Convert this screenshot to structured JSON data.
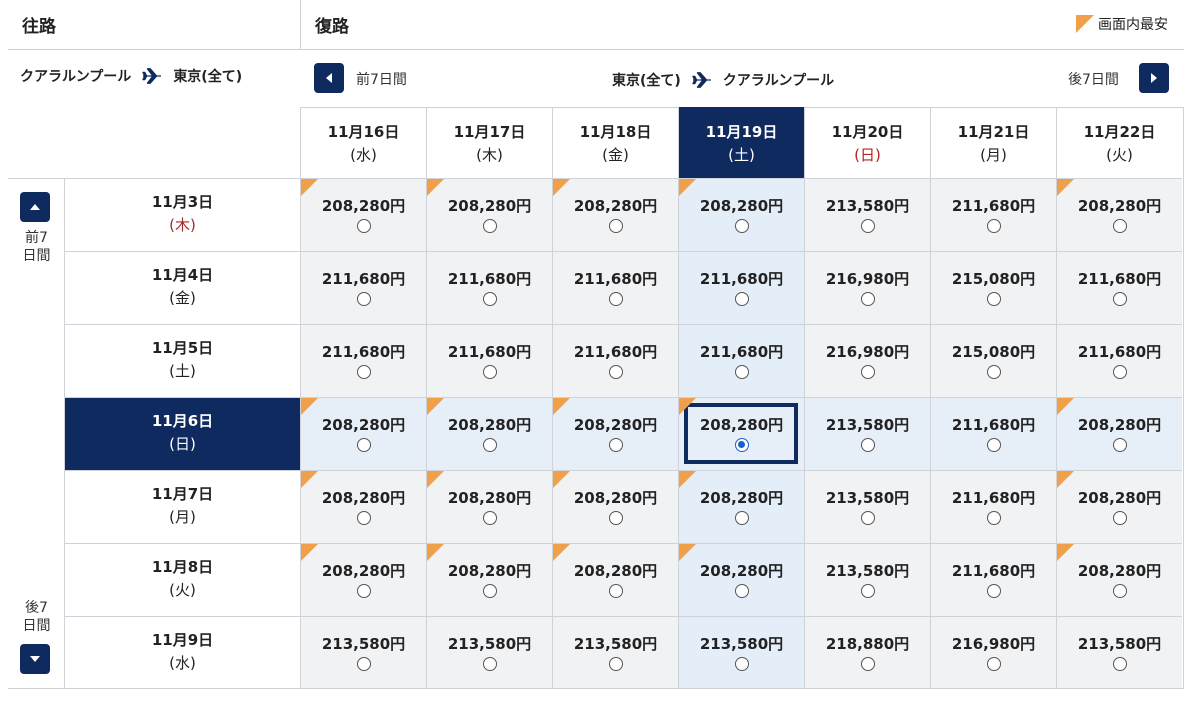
{
  "header": {
    "outbound_title": "往路",
    "return_title": "復路",
    "legend_label": "画面内最安",
    "legend_color": "#f0a04b"
  },
  "outbound_route": {
    "from": "クアラルンプール",
    "to": "東京(全て)"
  },
  "return_route": {
    "from": "東京(全て)",
    "to": "クアラルンプール"
  },
  "return_nav": {
    "prev_label": "前7日間",
    "next_label": "後7日間"
  },
  "outbound_nav": {
    "prev_label": "前7日間",
    "next_label": "後7日間"
  },
  "return_dates": [
    {
      "date": "11月16日",
      "weekday": "(水)"
    },
    {
      "date": "11月17日",
      "weekday": "(木)"
    },
    {
      "date": "11月18日",
      "weekday": "(金)"
    },
    {
      "date": "11月19日",
      "weekday": "(土)"
    },
    {
      "date": "11月20日",
      "weekday": "(日)"
    },
    {
      "date": "11月21日",
      "weekday": "(月)"
    },
    {
      "date": "11月22日",
      "weekday": "(火)"
    }
  ],
  "outbound_dates": [
    {
      "date": "11月3日",
      "weekday": "(木)"
    },
    {
      "date": "11月4日",
      "weekday": "(金)"
    },
    {
      "date": "11月5日",
      "weekday": "(土)"
    },
    {
      "date": "11月6日",
      "weekday": "(日)"
    },
    {
      "date": "11月7日",
      "weekday": "(月)"
    },
    {
      "date": "11月8日",
      "weekday": "(火)"
    },
    {
      "date": "11月9日",
      "weekday": "(水)"
    }
  ],
  "selected": {
    "outbound_index": 3,
    "return_index": 3
  },
  "prices": [
    [
      "208,280円",
      "208,280円",
      "208,280円",
      "208,280円",
      "213,580円",
      "211,680円",
      "208,280円"
    ],
    [
      "211,680円",
      "211,680円",
      "211,680円",
      "211,680円",
      "216,980円",
      "215,080円",
      "211,680円"
    ],
    [
      "211,680円",
      "211,680円",
      "211,680円",
      "211,680円",
      "216,980円",
      "215,080円",
      "211,680円"
    ],
    [
      "208,280円",
      "208,280円",
      "208,280円",
      "208,280円",
      "213,580円",
      "211,680円",
      "208,280円"
    ],
    [
      "208,280円",
      "208,280円",
      "208,280円",
      "208,280円",
      "213,580円",
      "211,680円",
      "208,280円"
    ],
    [
      "208,280円",
      "208,280円",
      "208,280円",
      "208,280円",
      "213,580円",
      "211,680円",
      "208,280円"
    ],
    [
      "213,580円",
      "213,580円",
      "213,580円",
      "213,580円",
      "218,880円",
      "216,980円",
      "213,580円"
    ]
  ],
  "cheapest": [
    [
      true,
      true,
      true,
      true,
      false,
      false,
      true
    ],
    [
      false,
      false,
      false,
      false,
      false,
      false,
      false
    ],
    [
      false,
      false,
      false,
      false,
      false,
      false,
      false
    ],
    [
      true,
      true,
      true,
      true,
      false,
      false,
      true
    ],
    [
      true,
      true,
      true,
      true,
      false,
      false,
      true
    ],
    [
      true,
      true,
      true,
      true,
      false,
      false,
      true
    ],
    [
      false,
      false,
      false,
      false,
      false,
      false,
      false
    ]
  ]
}
